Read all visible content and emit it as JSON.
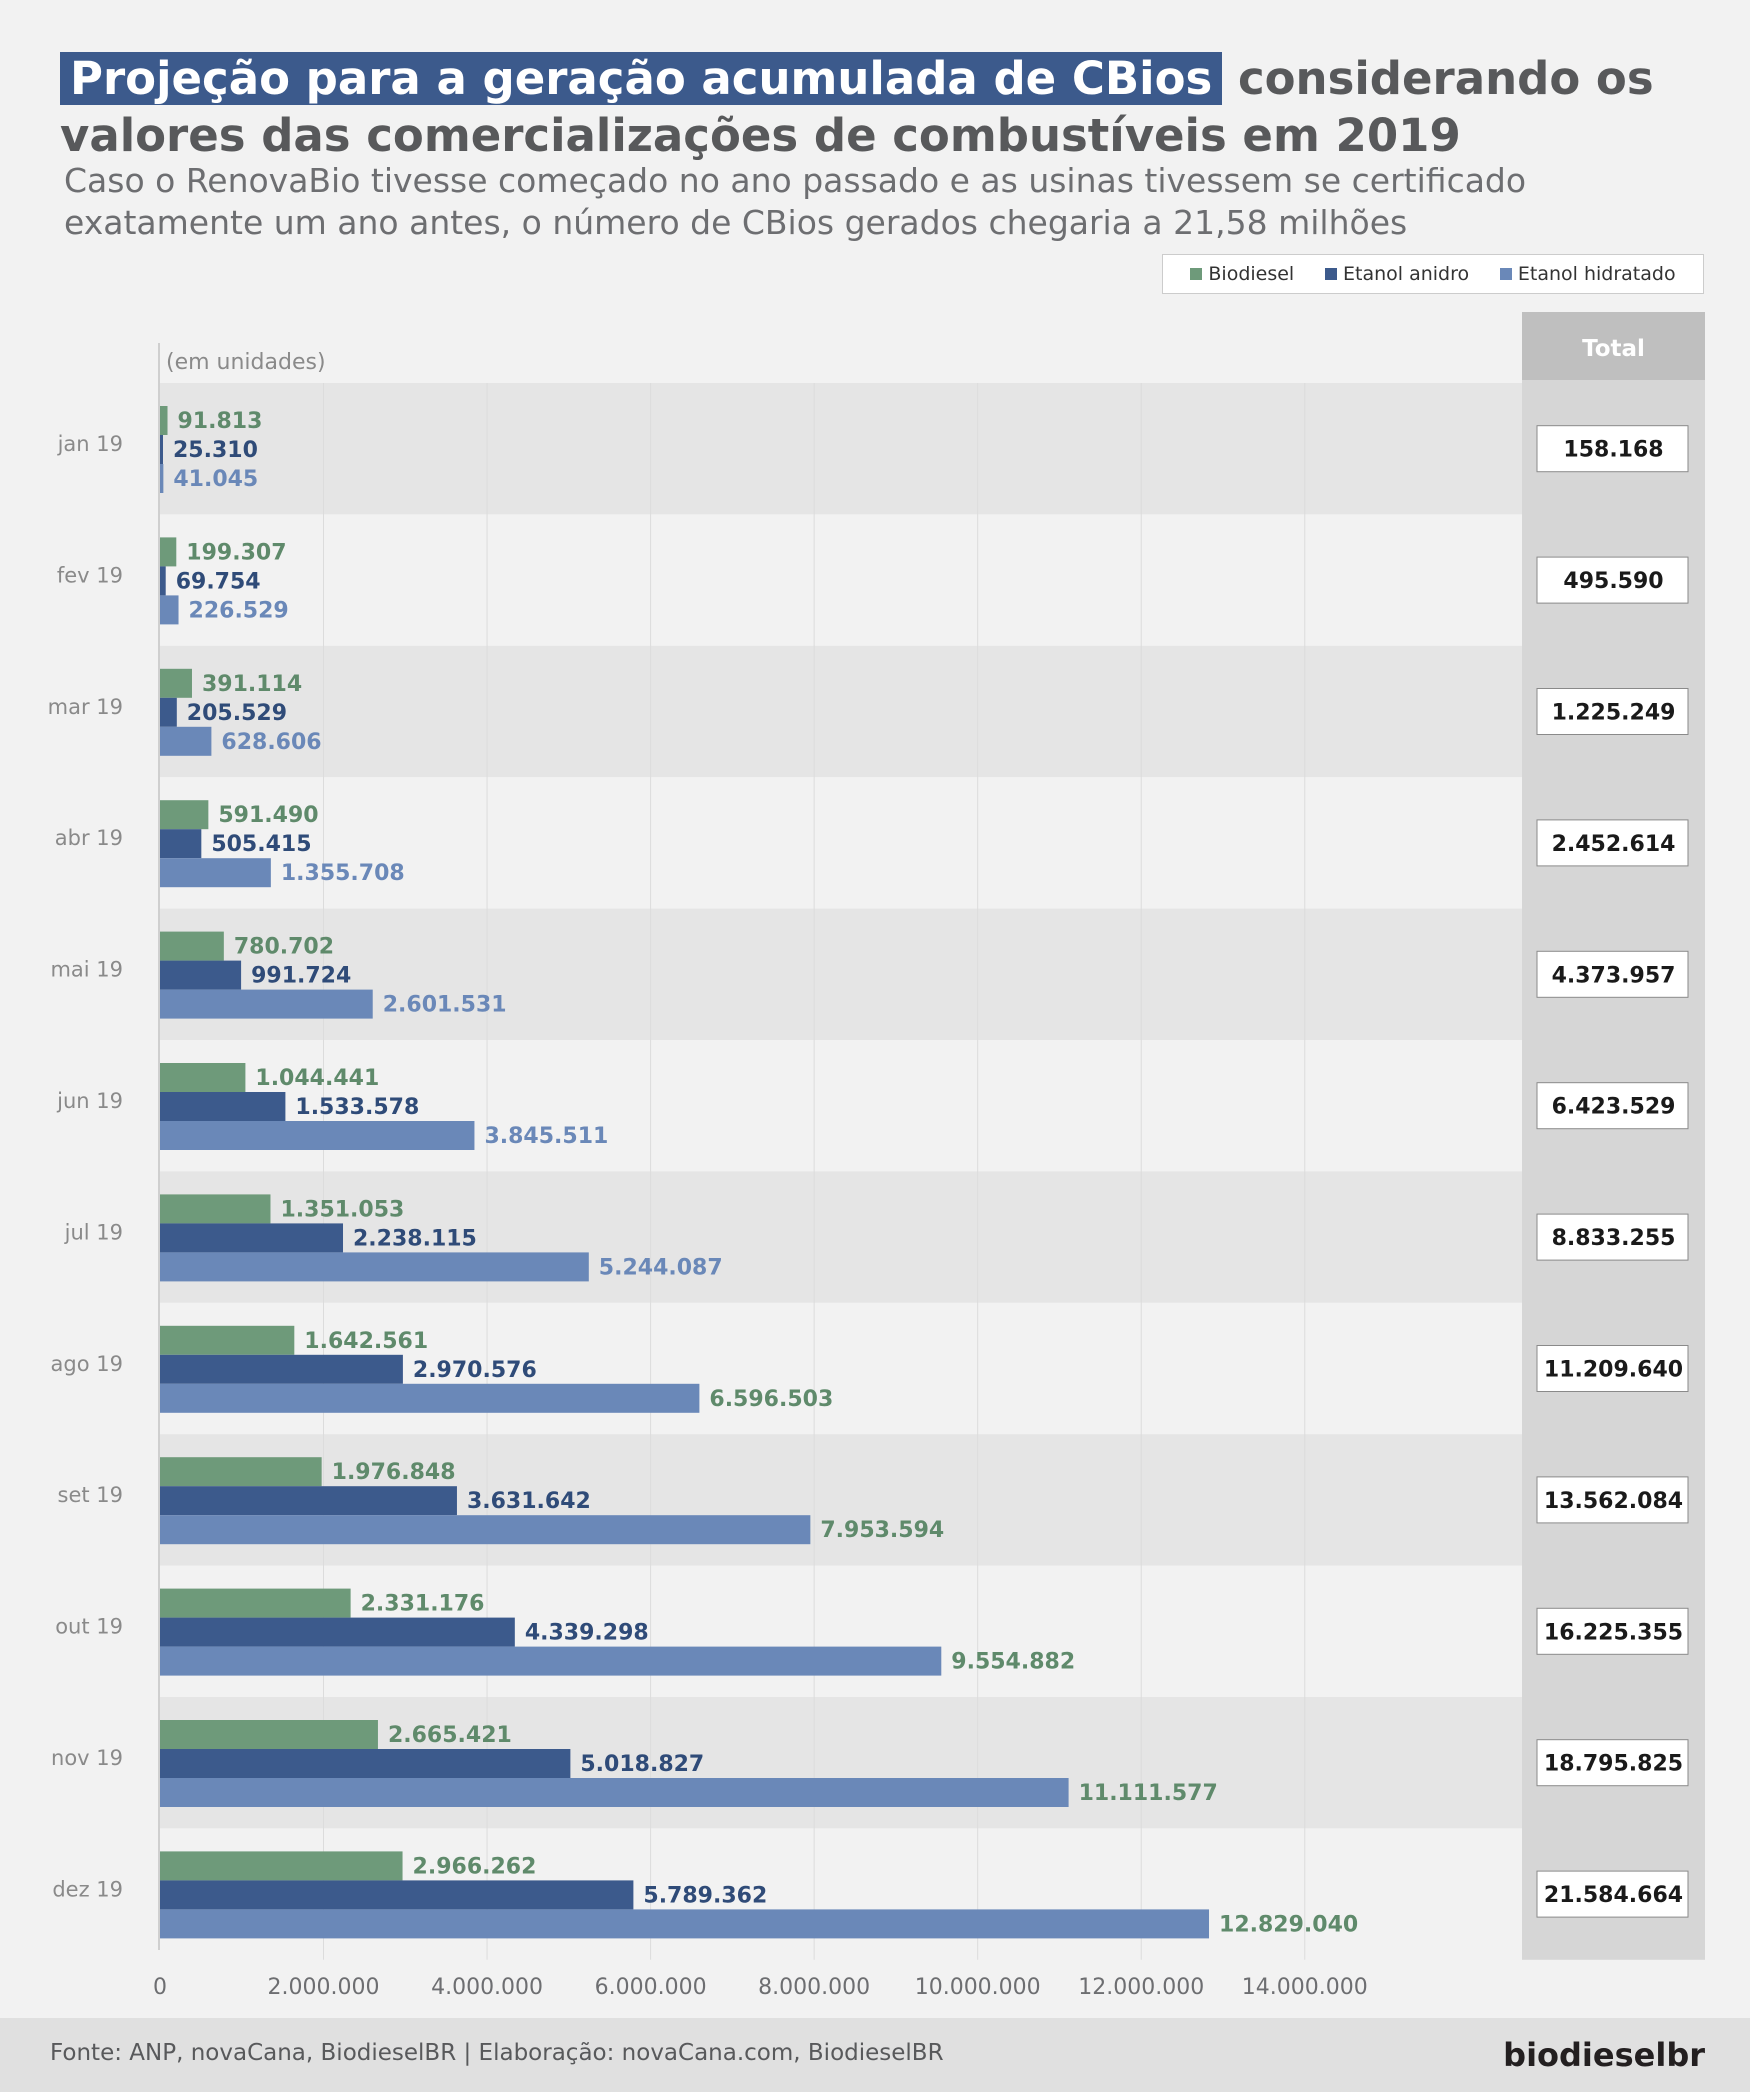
{
  "title": {
    "highlight": "Projeção para a geração acumulada de CBios",
    "rest": "considerando os valores das comercializações de combustíveis em 2019"
  },
  "subtitle": "Caso o RenovaBio tivesse começado no ano passado e as usinas tivessem se certificado exatamente um ano antes, o número de CBios gerados chegaria a 21,58 milhões",
  "footer": {
    "source": "Fonte: ANP, novaCana, BiodieselBR | Elaboração: novaCana.com, BiodieselBR",
    "logo": "biodieselbr"
  },
  "colors": {
    "Biodiesel": "#6e9a7a",
    "Etanol anidro": "#3c5a8c",
    "Etanol hidratado": "#6a88b8",
    "label_green": "#5f8a6b",
    "label_darkblue": "#2f4b78",
    "label_lightblue": "#6a88b8"
  },
  "chart_data": {
    "type": "bar",
    "orientation": "horizontal",
    "ylabel": "(em unidades)",
    "categories": [
      "jan 19",
      "fev 19",
      "mar 19",
      "abr 19",
      "mai 19",
      "jun 19",
      "jul 19",
      "ago 19",
      "set 19",
      "out 19",
      "nov 19",
      "dez 19"
    ],
    "series": [
      {
        "name": "Biodiesel",
        "values": [
          91813,
          199307,
          391114,
          591490,
          780702,
          1044441,
          1351053,
          1642561,
          1976848,
          2331176,
          2665421,
          2966262
        ],
        "labels": [
          "91.813",
          "199.307",
          "391.114",
          "591.490",
          "780.702",
          "1.044.441",
          "1.351.053",
          "1.642.561",
          "1.976.848",
          "2.331.176",
          "2.665.421",
          "2.966.262"
        ]
      },
      {
        "name": "Etanol anidro",
        "values": [
          25310,
          69754,
          205529,
          505415,
          991724,
          1533578,
          2238115,
          2970576,
          3631642,
          4339298,
          5018827,
          5789362
        ],
        "labels": [
          "25.310",
          "69.754",
          "205.529",
          "505.415",
          "991.724",
          "1.533.578",
          "2.238.115",
          "2.970.576",
          "3.631.642",
          "4.339.298",
          "5.018.827",
          "5.789.362"
        ]
      },
      {
        "name": "Etanol hidratado",
        "values": [
          41045,
          226529,
          628606,
          1355708,
          2601531,
          3845511,
          5244087,
          6596503,
          7953594,
          9554882,
          11111577,
          12829040
        ],
        "labels": [
          "41.045",
          "226.529",
          "628.606",
          "1.355.708",
          "2.601.531",
          "3.845.511",
          "5.244.087",
          "6.596.503",
          "7.953.594",
          "9.554.882",
          "11.111.577",
          "12.829.040"
        ]
      }
    ],
    "hidratado_label_colors": [
      "lightblue",
      "lightblue",
      "lightblue",
      "lightblue",
      "lightblue",
      "lightblue",
      "lightblue",
      "green",
      "green",
      "green",
      "green",
      "green"
    ],
    "totals_header": "Total",
    "totals": [
      "158.168",
      "495.590",
      "1.225.249",
      "2.452.614",
      "4.373.957",
      "6.423.529",
      "8.833.255",
      "11.209.640",
      "13.562.084",
      "16.225.355",
      "18.795.825",
      "21.584.664"
    ],
    "xlim": [
      0,
      14000000
    ],
    "xticks": [
      0,
      2000000,
      4000000,
      6000000,
      8000000,
      10000000,
      12000000,
      14000000
    ],
    "xtick_labels": [
      "0",
      "2.000.000",
      "4.000.000",
      "6.000.000",
      "8.000.000",
      "10.000.000",
      "12.000.000",
      "14.000.000"
    ],
    "grid": "vertical",
    "legend": "top-right"
  }
}
